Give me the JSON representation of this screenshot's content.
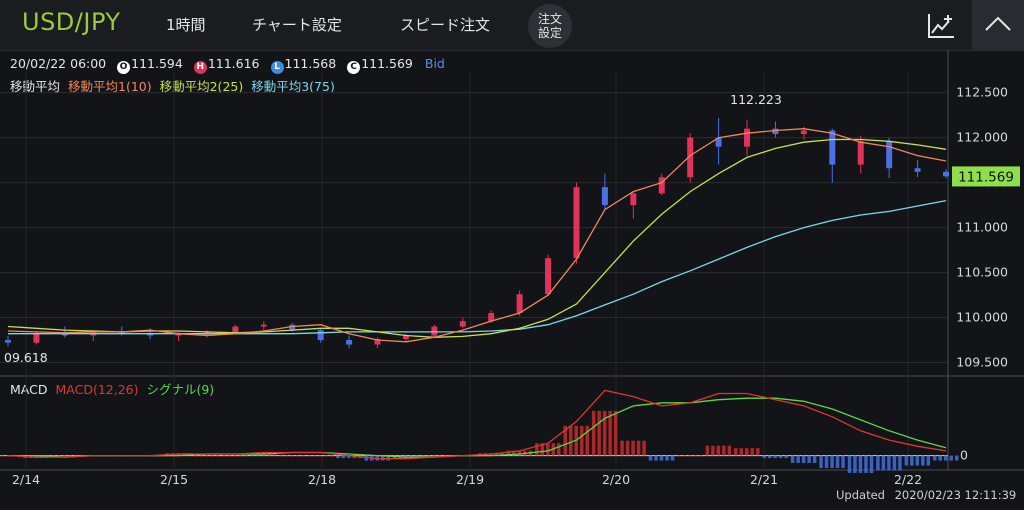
{
  "header": {
    "symbol": "USD/JPY",
    "timeframe": "1時間",
    "chart_settings": "チャート設定",
    "speed_order": "スピード注文",
    "order_settings_line1": "注文",
    "order_settings_line2": "設定"
  },
  "info": {
    "datetime": "20/02/22 06:00",
    "open_marker": "O",
    "open": "111.594",
    "high_marker": "H",
    "high": "111.616",
    "low_marker": "L",
    "low": "111.568",
    "close_marker": "C",
    "close": "111.569",
    "price_type": "Bid"
  },
  "ma": {
    "title": "移動平均",
    "ma1": "移動平均1(10)",
    "ma2": "移動平均2(25)",
    "ma3": "移動平均3(75)"
  },
  "macd": {
    "title": "MACD",
    "macd_label": "MACD(12,26)",
    "signal_label": "シグナル(9)",
    "zero_label": "0"
  },
  "chart_data": {
    "type": "candlestick",
    "price_axis": [
      "112.500",
      "112.000",
      "111.500",
      "111.000",
      "110.500",
      "110.000",
      "109.500"
    ],
    "ylim": [
      109.35,
      112.73
    ],
    "x_ticks": [
      "2/14",
      "2/15",
      "2/18",
      "2/19",
      "2/20",
      "2/21",
      "2/22"
    ],
    "max_label": "112.223",
    "min_label": "09.618",
    "current_price": "111.569",
    "ma1_color": "#f0875a",
    "ma2_color": "#c6e04a",
    "ma3_color": "#7ad7e6",
    "up_color": "#e0325a",
    "down_color": "#4a6fe6",
    "ma1_points": [
      109.85,
      109.84,
      109.83,
      109.84,
      109.84,
      109.86,
      109.82,
      109.8,
      109.82,
      109.85,
      109.9,
      109.92,
      109.82,
      109.75,
      109.73,
      109.78,
      109.86,
      109.96,
      110.05,
      110.25,
      110.65,
      111.2,
      111.4,
      111.5,
      111.8,
      112.0,
      112.05,
      112.08,
      112.1,
      112.05,
      111.95,
      111.9,
      111.8,
      111.74
    ],
    "ma2_points": [
      109.9,
      109.88,
      109.86,
      109.85,
      109.84,
      109.85,
      109.85,
      109.84,
      109.83,
      109.84,
      109.86,
      109.88,
      109.88,
      109.84,
      109.8,
      109.78,
      109.79,
      109.82,
      109.88,
      109.98,
      110.15,
      110.5,
      110.85,
      111.15,
      111.4,
      111.6,
      111.78,
      111.88,
      111.95,
      111.98,
      111.98,
      111.96,
      111.92,
      111.87
    ],
    "ma3_points": [
      109.82,
      109.82,
      109.82,
      109.82,
      109.82,
      109.82,
      109.82,
      109.82,
      109.82,
      109.82,
      109.82,
      109.83,
      109.84,
      109.84,
      109.84,
      109.84,
      109.84,
      109.85,
      109.87,
      109.92,
      110.02,
      110.14,
      110.26,
      110.4,
      110.52,
      110.65,
      110.78,
      110.9,
      111.0,
      111.08,
      111.14,
      111.18,
      111.24,
      111.3
    ],
    "candles": [
      [
        109.75,
        109.8,
        109.68,
        109.72
      ],
      [
        109.72,
        109.85,
        109.7,
        109.82
      ],
      [
        109.82,
        109.9,
        109.78,
        109.8
      ],
      [
        109.8,
        109.86,
        109.74,
        109.84
      ],
      [
        109.84,
        109.9,
        109.8,
        109.82
      ],
      [
        109.82,
        109.88,
        109.76,
        109.8
      ],
      [
        109.8,
        109.84,
        109.74,
        109.82
      ],
      [
        109.82,
        109.86,
        109.78,
        109.84
      ],
      [
        109.84,
        109.92,
        109.82,
        109.9
      ],
      [
        109.9,
        109.96,
        109.86,
        109.92
      ],
      [
        109.92,
        109.94,
        109.84,
        109.86
      ],
      [
        109.86,
        109.88,
        109.72,
        109.75
      ],
      [
        109.75,
        109.8,
        109.66,
        109.7
      ],
      [
        109.7,
        109.78,
        109.66,
        109.76
      ],
      [
        109.76,
        109.82,
        109.74,
        109.8
      ],
      [
        109.8,
        109.92,
        109.78,
        109.9
      ],
      [
        109.9,
        110.0,
        109.88,
        109.96
      ],
      [
        109.96,
        110.08,
        109.94,
        110.05
      ],
      [
        110.05,
        110.3,
        110.02,
        110.26
      ],
      [
        110.26,
        110.7,
        110.24,
        110.66
      ],
      [
        110.66,
        111.5,
        110.6,
        111.45
      ],
      [
        111.45,
        111.6,
        111.2,
        111.25
      ],
      [
        111.25,
        111.4,
        111.1,
        111.38
      ],
      [
        111.38,
        111.6,
        111.36,
        111.56
      ],
      [
        111.56,
        112.05,
        111.5,
        112.0
      ],
      [
        112.0,
        112.22,
        111.7,
        111.9
      ],
      [
        111.9,
        112.2,
        111.8,
        112.1
      ],
      [
        112.1,
        112.18,
        112.0,
        112.04
      ],
      [
        112.04,
        112.12,
        111.98,
        112.08
      ],
      [
        112.08,
        112.1,
        111.5,
        111.7
      ],
      [
        111.7,
        112.02,
        111.6,
        111.96
      ],
      [
        111.96,
        112.0,
        111.55,
        111.66
      ],
      [
        111.66,
        111.75,
        111.56,
        111.62
      ],
      [
        111.62,
        111.65,
        111.55,
        111.57
      ]
    ],
    "macd_line": [
      0.0,
      -0.01,
      -0.01,
      0.0,
      0.0,
      0.0,
      0.01,
      0.01,
      0.01,
      0.02,
      0.02,
      0.02,
      0.0,
      -0.02,
      -0.02,
      -0.01,
      0.0,
      0.01,
      0.03,
      0.08,
      0.22,
      0.42,
      0.38,
      0.32,
      0.34,
      0.4,
      0.4,
      0.36,
      0.32,
      0.25,
      0.16,
      0.1,
      0.06,
      0.03
    ],
    "signal_line": [
      0.0,
      0.0,
      -0.01,
      0.0,
      0.0,
      0.0,
      0.0,
      0.01,
      0.01,
      0.01,
      0.02,
      0.02,
      0.01,
      0.0,
      -0.01,
      -0.01,
      0.0,
      0.0,
      0.01,
      0.03,
      0.1,
      0.24,
      0.32,
      0.34,
      0.34,
      0.36,
      0.37,
      0.37,
      0.35,
      0.3,
      0.23,
      0.16,
      0.1,
      0.05
    ]
  },
  "footer": {
    "updated_label": "Updated",
    "updated_time": "2020/02/23 12:11:39"
  }
}
